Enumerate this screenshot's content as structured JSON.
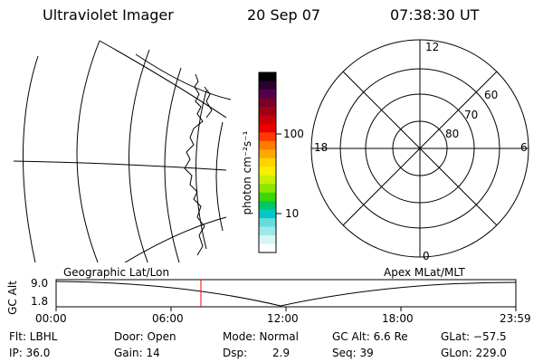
{
  "header": {
    "instrument": "Ultraviolet Imager",
    "date": "20 Sep 07",
    "time": "07:38:30 UT"
  },
  "colorbar": {
    "unit_label": "photon cm⁻²s⁻¹",
    "ticks": [
      "100",
      "10"
    ],
    "colors": [
      "#000000",
      "#2a0030",
      "#55004a",
      "#7a0028",
      "#a00014",
      "#c8000a",
      "#e80000",
      "#ff3a00",
      "#ff7a00",
      "#ffa800",
      "#ffd400",
      "#f4f000",
      "#c8f000",
      "#8ce600",
      "#3cd800",
      "#00c864",
      "#00c8c8",
      "#64dcdc",
      "#a0e8e8",
      "#d8f4f4",
      "#ffffff"
    ]
  },
  "polar_plot": {
    "mlt_labels": {
      "top": "12",
      "bottom": "0",
      "left": "18",
      "right": "6"
    },
    "lat_labels": [
      "60",
      "70",
      "80"
    ]
  },
  "timeline": {
    "y_axis_label": "GC Alt",
    "y_ticks": [
      "9.0",
      "1.8"
    ],
    "left_caption": "Geographic Lat/Lon",
    "right_caption": "Apex MLat/MLT",
    "x_ticks": [
      "00:00",
      "06:00",
      "12:00",
      "18:00",
      "23:59"
    ],
    "cursor_color": "#ff0000"
  },
  "info": {
    "filter": "Flt: LBHL",
    "ip": "IP: 36.0",
    "door": "Door: Open",
    "gain": "Gain: 14",
    "mode": "Mode: Normal",
    "dsp_label": "Dsp:",
    "dsp_value": "2.9",
    "gc_alt": "GC Alt: 6.6 Re",
    "seq": "Seq: 39",
    "glat": "GLat: −57.5",
    "glon": "GLon: 229.0"
  }
}
